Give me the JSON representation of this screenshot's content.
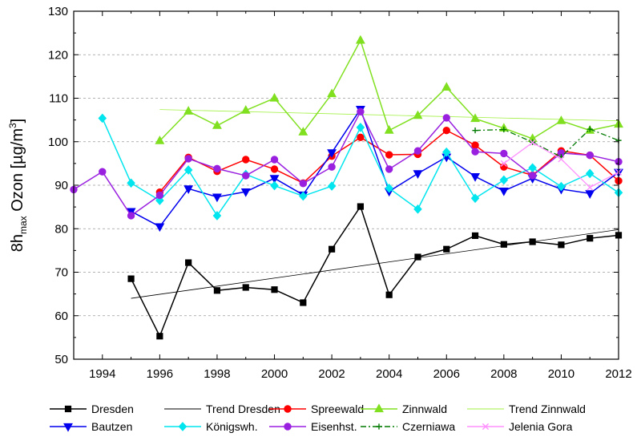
{
  "chart_data": {
    "type": "line",
    "ylabel": {
      "main": "8h",
      "sub": "max",
      "rest": " Ozon [µg/m",
      "sup": "3",
      "end": "]"
    },
    "xlim": [
      1993,
      2012
    ],
    "ylim": [
      50,
      130
    ],
    "xticks": [
      1994,
      1996,
      1998,
      2000,
      2002,
      2004,
      2006,
      2008,
      2010,
      2012
    ],
    "yticks": [
      50,
      60,
      70,
      80,
      90,
      100,
      110,
      120,
      130
    ],
    "grid": "horizontal-dashed",
    "legend_position": "bottom",
    "series": [
      {
        "name": "Dresden",
        "color": "#000000",
        "marker": "square",
        "style": "solid",
        "width": 1.5,
        "x": [
          1995,
          1996,
          1997,
          1998,
          1999,
          2000,
          2001,
          2002,
          2003,
          2004,
          2005,
          2006,
          2007,
          2008,
          2009,
          2010,
          2011,
          2012
        ],
        "y": [
          68.5,
          55.3,
          72.2,
          65.8,
          66.5,
          66.0,
          63.0,
          75.3,
          85.1,
          64.8,
          73.5,
          75.3,
          78.4,
          76.4,
          77.0,
          76.3,
          77.8,
          78.5
        ]
      },
      {
        "name": "Trend Dresden",
        "color": "#000000",
        "marker": "none",
        "style": "solid",
        "width": 0.8,
        "x": [
          1995,
          2012
        ],
        "y": [
          64.0,
          79.8
        ]
      },
      {
        "name": "Spreewald",
        "color": "#ff0000",
        "marker": "circle",
        "style": "solid",
        "width": 1.5,
        "x": [
          1996,
          1997,
          1998,
          1999,
          2000,
          2001,
          2002,
          2003,
          2004,
          2005,
          2006,
          2007,
          2008,
          2009,
          2010,
          2011,
          2012
        ],
        "y": [
          88.4,
          96.4,
          93.2,
          95.9,
          93.7,
          90.5,
          96.7,
          101.0,
          97.0,
          97.1,
          102.6,
          99.2,
          94.2,
          92.3,
          97.9,
          96.9,
          91.0
        ]
      },
      {
        "name": "Zinnwald",
        "color": "#80e020",
        "marker": "triangle-up",
        "style": "solid",
        "width": 1.5,
        "x": [
          1996,
          1997,
          1998,
          1999,
          2000,
          2001,
          2002,
          2003,
          2004,
          2005,
          2006,
          2007,
          2008,
          2009,
          2010,
          2011,
          2012
        ],
        "y": [
          100.2,
          107.0,
          103.7,
          107.2,
          110.0,
          102.2,
          111.0,
          123.3,
          102.6,
          106.0,
          112.5,
          105.3,
          103.1,
          100.7,
          104.8,
          102.6,
          104.0
        ]
      },
      {
        "name": "Trend Zinnwald",
        "color": "#a0f040",
        "marker": "none",
        "style": "solid",
        "width": 0.8,
        "x": [
          1996,
          2012
        ],
        "y": [
          107.4,
          104.8
        ]
      },
      {
        "name": "Bautzen",
        "color": "#0000ee",
        "marker": "triangle-down",
        "style": "solid",
        "width": 1.5,
        "x": [
          1995,
          1996,
          1997,
          1998,
          1999,
          2000,
          2001,
          2002,
          2003,
          2004,
          2005,
          2006,
          2007,
          2008,
          2009,
          2010,
          2011,
          2012
        ],
        "y": [
          84.0,
          80.5,
          89.2,
          87.3,
          88.5,
          91.6,
          87.8,
          97.5,
          107.5,
          88.6,
          92.7,
          96.5,
          92.0,
          88.7,
          91.6,
          89.1,
          88.1,
          93.0
        ]
      },
      {
        "name": "Königswh.",
        "color": "#00e5ee",
        "marker": "diamond",
        "style": "solid",
        "width": 1.5,
        "x": [
          1994,
          1995,
          1996,
          1997,
          1998,
          1999,
          2000,
          2001,
          2002,
          2003,
          2004,
          2005,
          2006,
          2007,
          2008,
          2009,
          2010,
          2011,
          2012
        ],
        "y": [
          105.4,
          90.5,
          86.5,
          93.5,
          83.0,
          92.5,
          89.9,
          87.5,
          89.8,
          103.3,
          89.3,
          84.5,
          97.6,
          87.0,
          91.2,
          94.0,
          89.7,
          92.7,
          88.3
        ]
      },
      {
        "name": "Eisenhst.",
        "color": "#9a20e0",
        "marker": "circle",
        "style": "solid",
        "width": 1.5,
        "x": [
          1993,
          1994,
          1995,
          1996,
          1997,
          1998,
          1999,
          2000,
          2001,
          2002,
          2003,
          2004,
          2005,
          2006,
          2007,
          2008,
          2009,
          2010,
          2011,
          2012
        ],
        "y": [
          89.0,
          93.1,
          83.0,
          87.7,
          96.1,
          93.8,
          92.2,
          95.9,
          90.4,
          94.2,
          106.9,
          93.7,
          97.9,
          105.5,
          97.7,
          97.3,
          92.2,
          97.4,
          96.9,
          95.4
        ]
      },
      {
        "name": "Czerniawa",
        "color": "#007a00",
        "marker": "plus",
        "style": "dashdot",
        "width": 1.3,
        "x": [
          2007,
          2008,
          2009,
          2010,
          2011,
          2012
        ],
        "y": [
          102.6,
          102.8,
          99.9,
          96.5,
          102.9,
          100.3
        ]
      },
      {
        "name": "Jelenia Gora",
        "color": "#ff90ff",
        "marker": "cross",
        "style": "solid",
        "width": 1.3,
        "x": [
          2008,
          2009,
          2010,
          2011,
          2012
        ],
        "y": [
          95.0,
          99.8,
          96.0,
          89.5,
          93.0
        ]
      }
    ],
    "legend_rows": [
      [
        "Dresden",
        "Trend Dresden",
        "Spreewald",
        "Zinnwald",
        "Trend Zinnwald"
      ],
      [
        "Bautzen",
        "Königswh.",
        "Eisenhst.",
        "Czerniawa",
        "Jelenia Gora"
      ]
    ]
  }
}
